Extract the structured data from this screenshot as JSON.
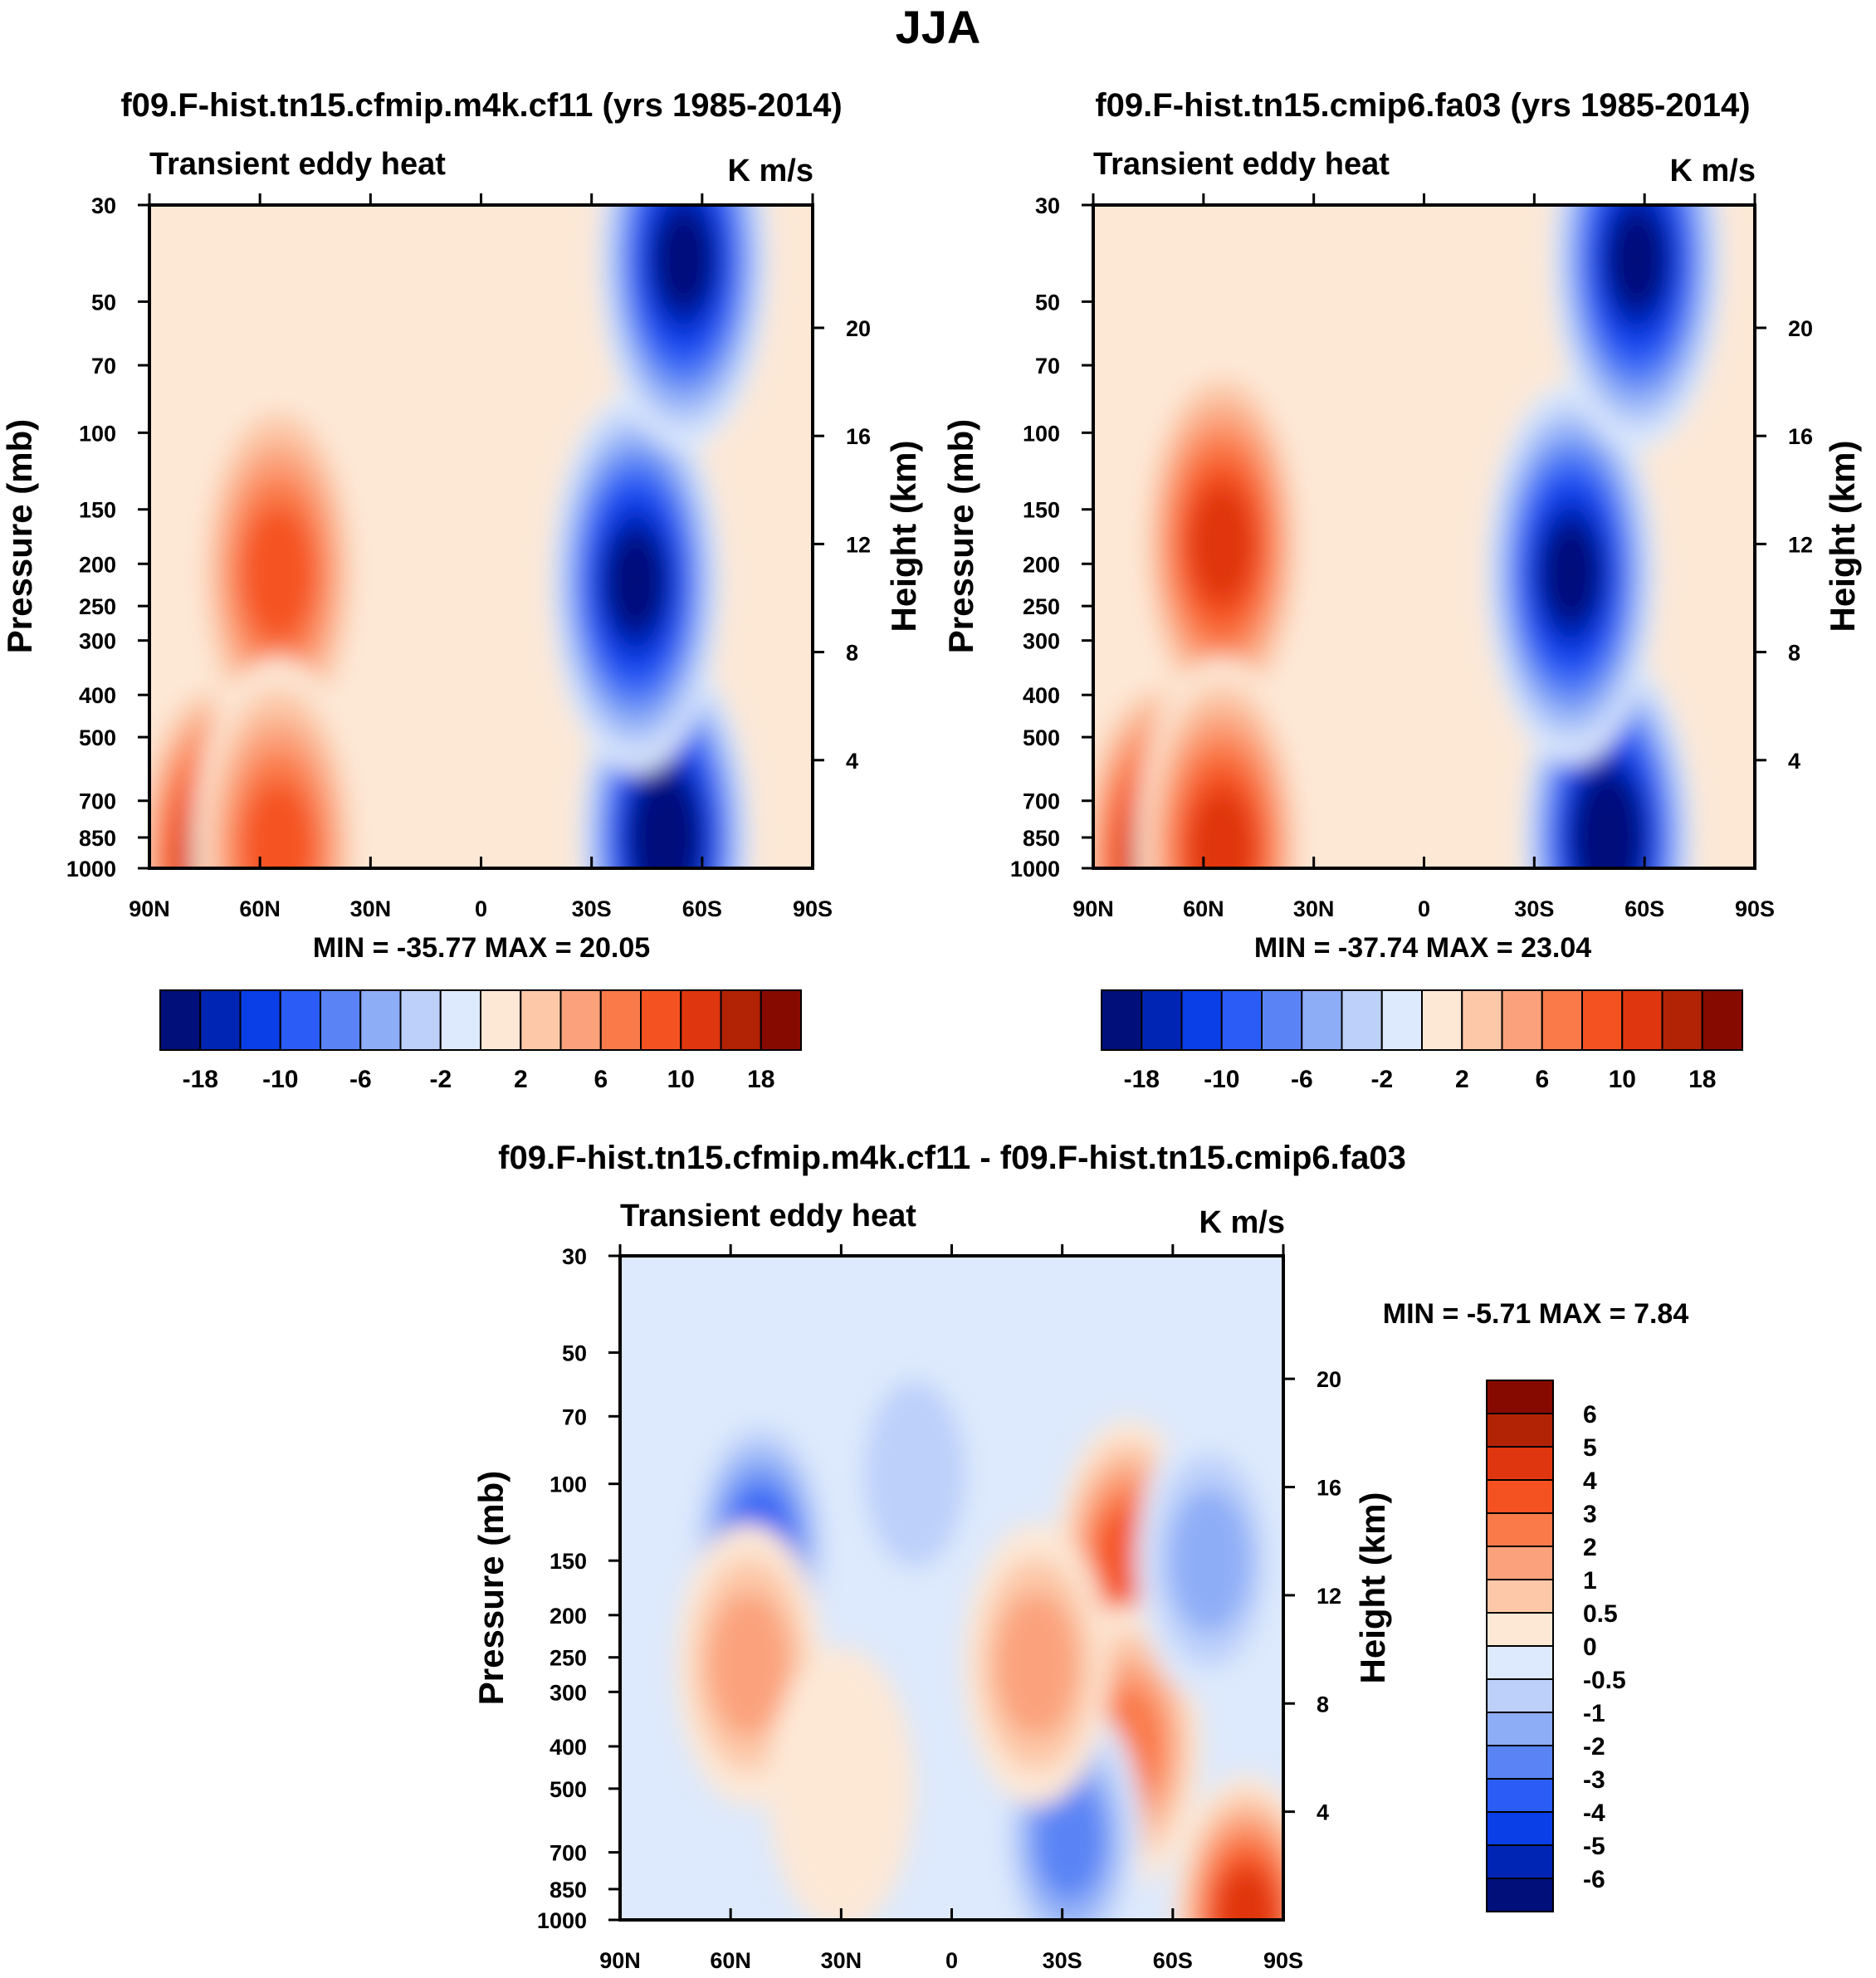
{
  "title": "JJA",
  "chart_data": [
    {
      "type": "heatmap",
      "panel": "model1",
      "title": "f09.F-hist.tn15.cfmip.m4k.cf11 (yrs 1985-2014)",
      "left_label": "Transient eddy heat",
      "units": "K m/s",
      "xlabel": "",
      "ylabel": "Pressure (mb)",
      "ylabel_right": "Height (km)",
      "x_ticks": [
        "90N",
        "60N",
        "30N",
        "0",
        "30S",
        "60S",
        "90S"
      ],
      "y_ticks": [
        "30",
        "50",
        "70",
        "100",
        "150",
        "200",
        "250",
        "300",
        "400",
        "500",
        "700",
        "850",
        "1000"
      ],
      "y_ticks_right": [
        "20",
        "16",
        "12",
        "8",
        "4"
      ],
      "stats": "MIN = -35.77  MAX =  20.05",
      "features": [
        {
          "lat": 72,
          "p": 950,
          "value": 17
        },
        {
          "lat": 55,
          "p": 210,
          "value": 11
        },
        {
          "lat": 55,
          "p": 900,
          "value": 12
        },
        {
          "lat": -50,
          "p": 850,
          "value": -34
        },
        {
          "lat": -42,
          "p": 220,
          "value": -24
        },
        {
          "lat": -55,
          "p": 40,
          "value": -22
        },
        {
          "lat": 0,
          "p": 300,
          "value": -0.6
        },
        {
          "lat": -82,
          "p": 250,
          "value": 0.6
        }
      ]
    },
    {
      "type": "heatmap",
      "panel": "model2",
      "title": "f09.F-hist.tn15.cmip6.fa03 (yrs 1985-2014)",
      "left_label": "Transient eddy heat",
      "units": "K m/s",
      "xlabel": "",
      "ylabel": "Pressure (mb)",
      "ylabel_right": "Height (km)",
      "x_ticks": [
        "90N",
        "60N",
        "30N",
        "0",
        "30S",
        "60S",
        "90S"
      ],
      "y_ticks": [
        "30",
        "50",
        "70",
        "100",
        "150",
        "200",
        "250",
        "300",
        "400",
        "500",
        "700",
        "850",
        "1000"
      ],
      "y_ticks_right": [
        "20",
        "16",
        "12",
        "8",
        "4"
      ],
      "stats": "MIN = -37.74  MAX =  23.04",
      "features": [
        {
          "lat": 72,
          "p": 950,
          "value": 19
        },
        {
          "lat": 55,
          "p": 180,
          "value": 13
        },
        {
          "lat": 55,
          "p": 900,
          "value": 13
        },
        {
          "lat": -50,
          "p": 850,
          "value": -36
        },
        {
          "lat": -40,
          "p": 210,
          "value": -26
        },
        {
          "lat": -58,
          "p": 40,
          "value": -24
        },
        {
          "lat": 8,
          "p": 110,
          "value": 0.6
        },
        {
          "lat": -82,
          "p": 220,
          "value": 0.7
        }
      ]
    },
    {
      "type": "heatmap",
      "panel": "difference",
      "title": "f09.F-hist.tn15.cfmip.m4k.cf11 - f09.F-hist.tn15.cmip6.fa03",
      "left_label": "Transient eddy heat",
      "units": "K m/s",
      "xlabel": "",
      "ylabel": "Pressure (mb)",
      "ylabel_right": "Height (km)",
      "x_ticks": [
        "90N",
        "60N",
        "30N",
        "0",
        "30S",
        "60S",
        "90S"
      ],
      "y_ticks": [
        "30",
        "50",
        "70",
        "100",
        "150",
        "200",
        "250",
        "300",
        "400",
        "500",
        "700",
        "850",
        "1000"
      ],
      "y_ticks_right": [
        "20",
        "16",
        "12",
        "8",
        "4"
      ],
      "stats": "MIN =  -5.71  MAX =   7.84",
      "features": [
        {
          "lat": 52,
          "p": 140,
          "value": -4.5
        },
        {
          "lat": -48,
          "p": 150,
          "value": 3.6
        },
        {
          "lat": -48,
          "p": 400,
          "value": 2.8
        },
        {
          "lat": -32,
          "p": 650,
          "value": -3.2
        },
        {
          "lat": 55,
          "p": 260,
          "value": 1.6
        },
        {
          "lat": -23,
          "p": 260,
          "value": 1.8
        },
        {
          "lat": 10,
          "p": 95,
          "value": -1.2
        },
        {
          "lat": -70,
          "p": 150,
          "value": -1.6
        },
        {
          "lat": -80,
          "p": 980,
          "value": 5.5
        },
        {
          "lat": 30,
          "p": 500,
          "value": 0.6
        }
      ]
    }
  ],
  "colorbar_top": {
    "labels": [
      "-18",
      "-10",
      "-6",
      "-2",
      "2",
      "6",
      "10",
      "18"
    ],
    "colors": [
      "#000f7a",
      "#0024b3",
      "#0a3ee6",
      "#2b5cf5",
      "#5a84f5",
      "#8eadf7",
      "#bcd0fa",
      "#dde9fc",
      "#fde8d6",
      "#fcc8a8",
      "#fba27c",
      "#fa7a4a",
      "#f55222",
      "#e0360f",
      "#b22204",
      "#870a00"
    ]
  },
  "colorbar_diff": {
    "labels": [
      "6",
      "5",
      "4",
      "3",
      "2",
      "1",
      "0.5",
      "0",
      "-0.5",
      "-1",
      "-2",
      "-3",
      "-4",
      "-5",
      "-6"
    ],
    "colors": [
      "#870a00",
      "#b22204",
      "#e0360f",
      "#f55222",
      "#fa7a4a",
      "#fba27c",
      "#fcc8a8",
      "#fde8d6",
      "#dde9fc",
      "#bcd0fa",
      "#8eadf7",
      "#5a84f5",
      "#2b5cf5",
      "#0a3ee6",
      "#0024b3",
      "#000f7a"
    ]
  }
}
